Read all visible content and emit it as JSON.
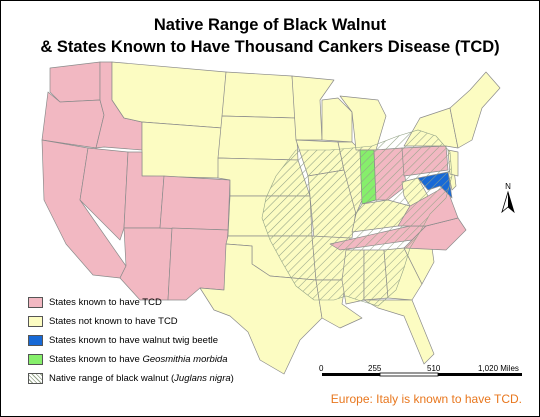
{
  "title": {
    "line1": "Native Range of Black Walnut",
    "line2": "& States Known to Have Thousand Cankers Disease (TCD)"
  },
  "colors": {
    "tcd": "#f2b8c2",
    "not_tcd": "#fcfcc2",
    "twig_beetle": "#1769d6",
    "geosmithia": "#86ef6b",
    "hatch": "#93a387",
    "border": "#8b8b8b",
    "note": "#e8771e"
  },
  "legend": {
    "items": [
      {
        "label": "States known to have TCD",
        "swatch": "tcd"
      },
      {
        "label": "States not known to have TCD",
        "swatch": "not_tcd"
      },
      {
        "label": "States known to have walnut twig beetle",
        "swatch": "twig_beetle"
      },
      {
        "label_prefix": "States known to have ",
        "label_italic": "Geosmithia morbida",
        "label_suffix": "",
        "swatch": "geosmithia"
      },
      {
        "label_prefix": "Native range of black walnut (",
        "label_italic": "Juglans nigra",
        "label_suffix": ")",
        "swatch": "hatch"
      }
    ]
  },
  "scale_bar": {
    "ticks": [
      "0",
      "255",
      "510",
      "1,020 Miles"
    ]
  },
  "north_arrow": {
    "label": "N",
    "icon": "north-arrow-icon"
  },
  "footer_note": "Europe: Italy is known to have TCD.",
  "map": {
    "tcd_states": [
      "Washington",
      "Oregon",
      "California",
      "Idaho",
      "Nevada",
      "Utah",
      "Arizona",
      "Colorado",
      "New Mexico",
      "Tennessee",
      "Pennsylvania",
      "Virginia",
      "Ohio",
      "North Carolina"
    ],
    "twig_beetle_states": [
      "Maryland"
    ],
    "geosmithia_states": [
      "Indiana"
    ]
  }
}
